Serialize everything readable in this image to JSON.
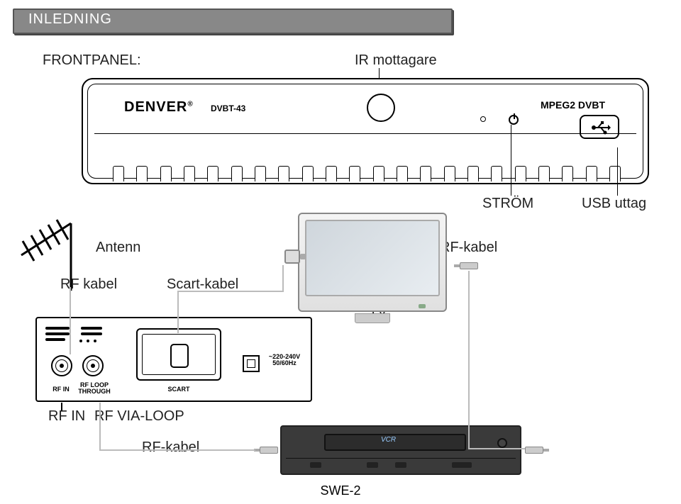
{
  "header": {
    "title": "INLEDNING"
  },
  "labels": {
    "frontpanel": "FRONTPANEL:",
    "ir": "IR mottagare",
    "power": "STRÖM",
    "usb": "USB uttag",
    "antenna": "Antenn",
    "rf_cable_top": "RF-kabel",
    "rf_cable_left": "RF kabel",
    "scart_cable": "Scart-kabel",
    "tv": "TV",
    "rf_in": "RF IN",
    "rf_via_loop": "RF VIA-LOOP",
    "rf_cable_bottom": "RF-kabel",
    "page": "SWE-2"
  },
  "receiver": {
    "brand": "DENVER",
    "model": "DVBT-43",
    "mpeg": "MPEG2 DVBT",
    "slot_count": 22
  },
  "back_panel": {
    "rf_in": "RF IN",
    "rf_loop": "RF LOOP\nTHROUGH",
    "scart": "SCART",
    "power": "~220-240V\n50/60Hz"
  },
  "colors": {
    "header_bg": "#888888",
    "header_border": "#555555",
    "text": "#222222",
    "wire": "#bbbbbb",
    "vcr_bg": "#3a3a3a"
  }
}
